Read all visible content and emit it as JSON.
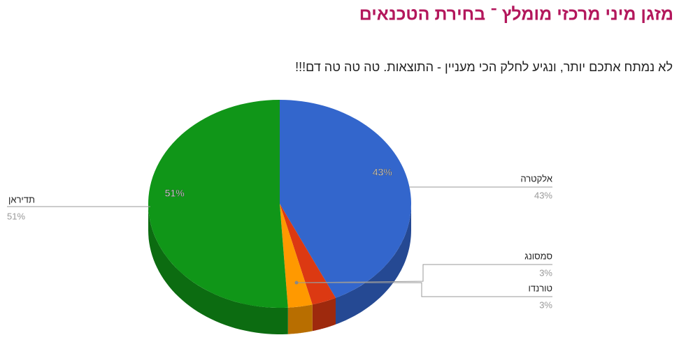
{
  "chart_data": {
    "type": "pie3d",
    "title": "מזגן מיני מרכזי מומלץ ־ בחירת הטכנאים",
    "subtitle": "לא נמתח אתכם יותר, ונגיע לחלק הכי מעניין - התוצאות. טה טה טה דם!!!",
    "categories": [
      "אלקטרה",
      "סמסונג",
      "טורנדו",
      "תדיראן"
    ],
    "values": [
      43,
      3,
      3,
      51
    ],
    "value_labels": [
      "43%",
      "3%",
      "3%",
      "51%"
    ],
    "colors": [
      "#3366cc",
      "#dc3912",
      "#ff9900",
      "#109618"
    ]
  }
}
